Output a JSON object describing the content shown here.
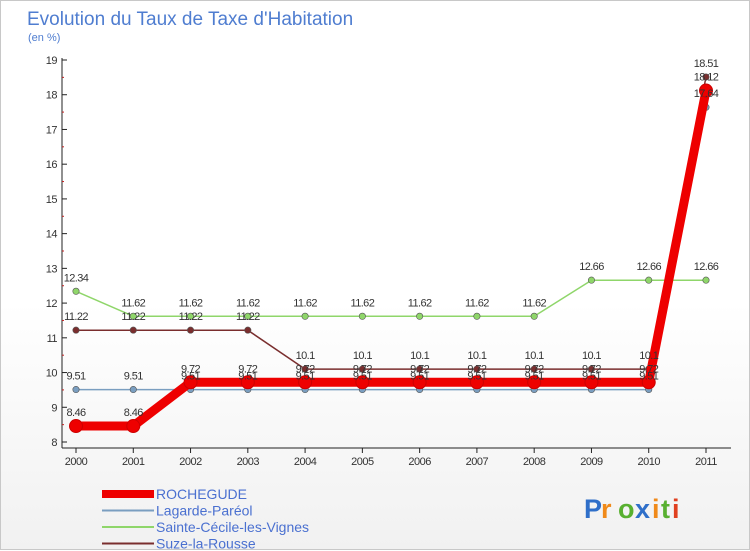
{
  "chart_data": {
    "type": "line",
    "title": "Evolution du Taux de Taxe d'Habitation",
    "subtitle": "(en %)",
    "xlabel": "",
    "ylabel": "",
    "x": [
      "2000",
      "2001",
      "2002",
      "2003",
      "2004",
      "2005",
      "2006",
      "2007",
      "2008",
      "2009",
      "2010",
      "2011"
    ],
    "ylim": [
      8,
      19
    ],
    "yticks": [
      "8",
      "9",
      "10",
      "11",
      "12",
      "13",
      "14",
      "15",
      "16",
      "17",
      "18",
      "19"
    ],
    "grid": false,
    "legend_position": "bottom-left",
    "series": [
      {
        "name": "ROCHEGUDE",
        "color": "#ee0000",
        "values": [
          8.46,
          8.46,
          9.72,
          9.72,
          9.72,
          9.72,
          9.72,
          9.72,
          9.72,
          9.72,
          9.72,
          18.12
        ],
        "labels": [
          "8.46",
          "8.46",
          "9.72",
          "9.72",
          "9.72",
          "9.72",
          "9.72",
          "9.72",
          "9.72",
          "9.72",
          "9.72",
          "18.12"
        ]
      },
      {
        "name": "Lagarde-Paréol",
        "color": "#7a9ec0",
        "values": [
          9.51,
          9.51,
          9.51,
          9.51,
          9.51,
          9.51,
          9.51,
          9.51,
          9.51,
          9.51,
          9.51,
          17.64
        ],
        "labels": [
          "9.51",
          "9.51",
          "9.51",
          "9.51",
          "9.51",
          "9.51",
          "9.51",
          "9.51",
          "9.51",
          "9.51",
          "9.51",
          "17.64"
        ]
      },
      {
        "name": "Sainte-Cécile-les-Vignes",
        "color": "#8fd66a",
        "values": [
          12.34,
          11.62,
          11.62,
          11.62,
          11.62,
          11.62,
          11.62,
          11.62,
          11.62,
          12.66,
          12.66,
          12.66
        ],
        "labels": [
          "12.34",
          "11.62",
          "11.62",
          "11.62",
          "11.62",
          "11.62",
          "11.62",
          "11.62",
          "11.62",
          "12.66",
          "12.66",
          "12.66"
        ]
      },
      {
        "name": "Suze-la-Rousse",
        "color": "#7a2e2e",
        "values": [
          11.22,
          11.22,
          11.22,
          11.22,
          10.1,
          10.1,
          10.1,
          10.1,
          10.1,
          10.1,
          10.1,
          18.51
        ],
        "labels": [
          "11.22",
          "11.22",
          "11.22",
          "11.22",
          "10.1",
          "10.1",
          "10.1",
          "10.1",
          "10.1",
          "10.1",
          "10.1",
          "18.51"
        ]
      }
    ]
  },
  "logo": {
    "letters": [
      "P",
      "r",
      "o",
      "x",
      "i",
      "t",
      "i"
    ],
    "colors": [
      "#2f6fc9",
      "#f08a1a",
      "#58b030",
      "#2f6fc9",
      "#f08a1a",
      "#58b030",
      "#e04020"
    ]
  }
}
